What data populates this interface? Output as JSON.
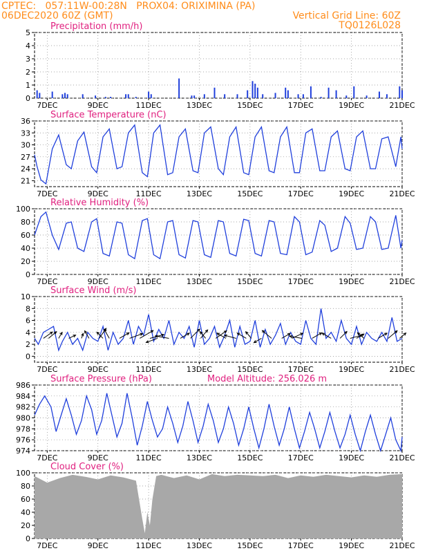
{
  "header": {
    "line1_left": "CPTEC:   057:11W-00:28N   PROX04: ORIXIMINA (PA)",
    "line2_left": "06DEC2020 60Z (GMT)",
    "line2_right": "Vertical Grid Line: 60Z",
    "line3_right": "TQ0126L028"
  },
  "colors": {
    "header": "#ff8c1a",
    "title": "#e0207f",
    "series": "#1f3fdc",
    "cloud": "#a8a8a8",
    "wind_arrow": "#000000",
    "grid": "#888888"
  },
  "x_axis": {
    "labels": [
      "7DEC",
      "9DEC",
      "11DEC",
      "13DEC",
      "15DEC",
      "17DEC",
      "19DEC",
      "21DEC"
    ],
    "range_days": [
      6.5,
      21
    ],
    "label_days": [
      7,
      9,
      11,
      13,
      15,
      17,
      19,
      21
    ]
  },
  "chart_data": [
    {
      "type": "bar",
      "title": "Precipitation (mm/h)",
      "ylim": [
        0,
        5
      ],
      "yticks": [
        "0",
        "1",
        "2",
        "3",
        "4",
        "5"
      ],
      "x": [
        6.6,
        6.7,
        7.2,
        7.6,
        7.7,
        7.8,
        8.4,
        8.9,
        9.3,
        9.5,
        10.1,
        10.2,
        10.5,
        11.0,
        11.1,
        12.2,
        12.7,
        12.8,
        13.2,
        13.6,
        14.0,
        14.5,
        14.9,
        15.1,
        15.2,
        15.3,
        15.5,
        16.0,
        16.4,
        16.5,
        16.9,
        17.1,
        17.4,
        17.8,
        18.1,
        18.4,
        18.8,
        19.1,
        19.6,
        20.1,
        20.4,
        20.9,
        21.0
      ],
      "values": [
        0.6,
        0.4,
        0.5,
        0.3,
        0.4,
        0.3,
        0.3,
        0.2,
        0.1,
        0.1,
        0.3,
        0.3,
        0.1,
        0.5,
        0.3,
        1.5,
        0.2,
        0.2,
        0.3,
        0.8,
        0.3,
        0.3,
        0.6,
        1.3,
        1.1,
        0.8,
        0.3,
        0.4,
        0.8,
        0.6,
        0.3,
        0.3,
        0.9,
        0.1,
        0.8,
        0.6,
        0.2,
        0.9,
        0.2,
        0.5,
        0.3,
        0.9,
        0.6
      ]
    },
    {
      "type": "line",
      "title": "Surface Temperature (nC)",
      "ylim": [
        19.5,
        36
      ],
      "yticks": [
        "21",
        "24",
        "27",
        "30",
        "33",
        "36"
      ],
      "x": [
        6.5,
        6.6,
        6.75,
        6.95,
        7.2,
        7.45,
        7.75,
        7.95,
        8.2,
        8.45,
        8.75,
        8.95,
        9.2,
        9.45,
        9.75,
        9.95,
        10.2,
        10.45,
        10.75,
        10.95,
        11.2,
        11.45,
        11.75,
        11.95,
        12.2,
        12.45,
        12.75,
        12.95,
        13.2,
        13.45,
        13.75,
        13.95,
        14.2,
        14.45,
        14.75,
        14.95,
        15.2,
        15.45,
        15.75,
        15.95,
        16.2,
        16.45,
        16.75,
        16.95,
        17.2,
        17.45,
        17.75,
        17.95,
        18.2,
        18.45,
        18.75,
        18.95,
        19.2,
        19.45,
        19.75,
        19.95,
        20.2,
        20.45,
        20.75,
        20.95,
        21.0
      ],
      "values": [
        27.5,
        24.5,
        21.2,
        20.2,
        29,
        32.5,
        25,
        24,
        31,
        33.2,
        24.5,
        23,
        32,
        34,
        24,
        24.5,
        33,
        35,
        23,
        22,
        33,
        35,
        22.5,
        23,
        32,
        34,
        23.5,
        23,
        33,
        34.5,
        24,
        22.5,
        32,
        34.5,
        23,
        22.5,
        32,
        34.5,
        23.5,
        23,
        32,
        34.5,
        23,
        23,
        33,
        34,
        23.5,
        23.5,
        32,
        33.5,
        24,
        23.5,
        32,
        33.5,
        24,
        24,
        31.5,
        32,
        24.5,
        32,
        29
      ]
    },
    {
      "type": "line",
      "title": "Relative Humidity (%)",
      "ylim": [
        0,
        100
      ],
      "yticks": [
        "0",
        "20",
        "40",
        "60",
        "80",
        "100"
      ],
      "x": [
        6.5,
        6.75,
        6.95,
        7.2,
        7.45,
        7.75,
        7.95,
        8.2,
        8.45,
        8.75,
        8.95,
        9.2,
        9.45,
        9.75,
        9.95,
        10.2,
        10.45,
        10.75,
        10.95,
        11.2,
        11.45,
        11.75,
        11.95,
        12.2,
        12.45,
        12.75,
        12.95,
        13.2,
        13.45,
        13.75,
        13.95,
        14.2,
        14.45,
        14.75,
        14.95,
        15.2,
        15.45,
        15.75,
        15.95,
        16.2,
        16.45,
        16.75,
        16.95,
        17.2,
        17.45,
        17.75,
        17.95,
        18.2,
        18.45,
        18.75,
        18.95,
        19.2,
        19.45,
        19.75,
        19.95,
        20.2,
        20.45,
        20.75,
        20.95,
        21.0
      ],
      "values": [
        60,
        88,
        95,
        60,
        38,
        78,
        80,
        40,
        35,
        80,
        85,
        32,
        28,
        80,
        78,
        30,
        24,
        82,
        85,
        30,
        24,
        80,
        82,
        30,
        25,
        82,
        80,
        30,
        26,
        82,
        80,
        32,
        28,
        84,
        82,
        32,
        28,
        82,
        80,
        32,
        30,
        88,
        80,
        30,
        34,
        82,
        75,
        35,
        40,
        88,
        78,
        38,
        40,
        88,
        80,
        38,
        40,
        90,
        40,
        52
      ]
    },
    {
      "type": "line",
      "title": "Surface Wind (m/s)",
      "ylim": [
        -1,
        10
      ],
      "yticks": [
        "0",
        "2",
        "4",
        "6",
        "8",
        "10"
      ],
      "x": [
        6.5,
        6.65,
        6.85,
        7.05,
        7.25,
        7.45,
        7.6,
        7.8,
        8.0,
        8.2,
        8.4,
        8.6,
        8.8,
        9.0,
        9.2,
        9.4,
        9.6,
        9.8,
        10.0,
        10.2,
        10.4,
        10.6,
        10.8,
        11.0,
        11.2,
        11.4,
        11.6,
        11.8,
        12.0,
        12.2,
        12.4,
        12.6,
        12.8,
        13.0,
        13.2,
        13.4,
        13.6,
        13.8,
        14.0,
        14.2,
        14.4,
        14.6,
        14.8,
        15.0,
        15.2,
        15.4,
        15.6,
        15.8,
        16.0,
        16.2,
        16.4,
        16.6,
        16.8,
        17.0,
        17.2,
        17.4,
        17.6,
        17.8,
        18.0,
        18.2,
        18.4,
        18.6,
        18.8,
        19.0,
        19.2,
        19.4,
        19.6,
        19.8,
        20.0,
        20.2,
        20.4,
        20.6,
        20.8,
        21.0
      ],
      "values": [
        3,
        2,
        4,
        4.5,
        5,
        1,
        2.5,
        4,
        2,
        3,
        1,
        4,
        3,
        2.5,
        5,
        1,
        4,
        2,
        3,
        6,
        2,
        5,
        3.5,
        7,
        2.5,
        4.5,
        3,
        6,
        2,
        4,
        3,
        5,
        1.5,
        6,
        2,
        3,
        5,
        1.5,
        3.5,
        6,
        1.5,
        5,
        2,
        2.5,
        6,
        1.5,
        4.5,
        2,
        3.5,
        5.5,
        2,
        4,
        2.5,
        2,
        6,
        3,
        2,
        8,
        3,
        4,
        2.5,
        6,
        3,
        2,
        5,
        2,
        4,
        3,
        2.5,
        4,
        2.5,
        6.5,
        2.5,
        3
      ]
    },
    {
      "type": "line",
      "title": "Surface Pressure (hPa)",
      "annotation": "Model Altitude: 256.026 m",
      "ylim": [
        974,
        986
      ],
      "yticks": [
        "974",
        "976",
        "978",
        "980",
        "982",
        "984",
        "986"
      ],
      "x": [
        6.5,
        6.7,
        6.9,
        7.15,
        7.35,
        7.55,
        7.75,
        7.95,
        8.15,
        8.35,
        8.55,
        8.75,
        8.95,
        9.15,
        9.35,
        9.55,
        9.75,
        9.95,
        10.15,
        10.35,
        10.55,
        10.75,
        10.95,
        11.15,
        11.35,
        11.55,
        11.75,
        11.95,
        12.15,
        12.35,
        12.55,
        12.75,
        12.95,
        13.15,
        13.35,
        13.55,
        13.75,
        13.95,
        14.15,
        14.35,
        14.55,
        14.75,
        14.95,
        15.15,
        15.35,
        15.55,
        15.75,
        15.95,
        16.15,
        16.35,
        16.55,
        16.75,
        16.95,
        17.15,
        17.35,
        17.55,
        17.75,
        17.95,
        18.15,
        18.35,
        18.55,
        18.75,
        18.95,
        19.15,
        19.35,
        19.55,
        19.75,
        19.95,
        20.15,
        20.35,
        20.55,
        20.75,
        20.95,
        21.0
      ],
      "values": [
        980.5,
        982.5,
        984,
        982,
        977.5,
        980.5,
        983.5,
        980.5,
        977,
        979.5,
        984,
        981.5,
        977,
        979.5,
        984.5,
        980.5,
        976.5,
        979,
        984.5,
        980,
        975,
        978.5,
        983,
        979.5,
        976.5,
        978,
        982,
        979,
        975.5,
        978.5,
        983,
        979.5,
        975.5,
        978.5,
        982.5,
        979.5,
        975.5,
        978,
        982,
        979,
        975,
        978,
        982,
        978,
        974.5,
        978,
        982.5,
        978.5,
        975,
        978,
        982,
        978,
        974.5,
        977.5,
        981,
        978,
        974.5,
        977.5,
        981,
        977.5,
        974.5,
        977,
        980.5,
        977,
        974,
        977.5,
        980.5,
        977,
        974,
        977,
        980,
        976,
        974,
        976.5
      ]
    },
    {
      "type": "bar",
      "title": "Cloud Cover (%)",
      "ylim": [
        0,
        100
      ],
      "yticks": [
        "0",
        "20",
        "40",
        "60",
        "80",
        "100"
      ],
      "x": [
        6.5,
        7.0,
        7.5,
        8.0,
        8.5,
        9.0,
        9.5,
        10.0,
        10.5,
        10.75,
        10.85,
        10.95,
        11.05,
        11.15,
        11.3,
        11.5,
        12.0,
        12.5,
        13.0,
        13.5,
        14.0,
        14.5,
        15.0,
        15.5,
        16.0,
        16.5,
        17.0,
        17.5,
        18.0,
        18.5,
        19.0,
        19.5,
        20.0,
        20.5,
        21.0
      ],
      "values": [
        95,
        85,
        92,
        97,
        94,
        90,
        96,
        93,
        88,
        30,
        8,
        40,
        20,
        60,
        95,
        97,
        92,
        96,
        90,
        98,
        95,
        97,
        96,
        95,
        97,
        92,
        96,
        94,
        97,
        95,
        93,
        96,
        94,
        97,
        98
      ]
    }
  ],
  "wind_vectors": {
    "x": [
      6.85,
      7.05,
      7.45,
      7.85,
      8.35,
      8.65,
      9.05,
      9.2,
      9.45,
      9.85,
      10.25,
      10.65,
      11.05,
      11.35,
      11.8,
      12.25,
      12.65,
      13.05,
      13.25,
      13.65,
      14.05,
      14.45,
      14.85,
      15.05,
      15.45,
      15.85,
      16.25,
      16.65,
      17.05,
      17.45,
      18.2,
      18.55,
      18.95,
      19.2,
      19.5,
      20.05,
      20.45,
      20.9
    ],
    "mag": [
      3.2,
      3.0,
      2.0,
      2.2,
      1.5,
      2.5,
      3.5,
      2.5,
      3.0,
      3.2,
      4.0,
      4.5,
      4.2,
      3.5,
      4.0,
      3.0,
      3.8,
      3.2,
      2.5,
      3.8,
      3.0,
      3.5,
      3.0,
      2.5,
      2.5,
      3.5,
      2.8,
      3.5,
      3.6,
      3.2,
      3.0,
      2.8,
      3.6,
      2.5,
      2.5,
      3.0,
      3.4,
      2.4
    ],
    "dir_deg": [
      35,
      40,
      60,
      25,
      70,
      120,
      55,
      135,
      120,
      30,
      20,
      30,
      15,
      200,
      170,
      30,
      45,
      50,
      130,
      35,
      150,
      165,
      150,
      130,
      210,
      140,
      30,
      25,
      170,
      30,
      150,
      45,
      15,
      30,
      140,
      30,
      40,
      40
    ]
  }
}
